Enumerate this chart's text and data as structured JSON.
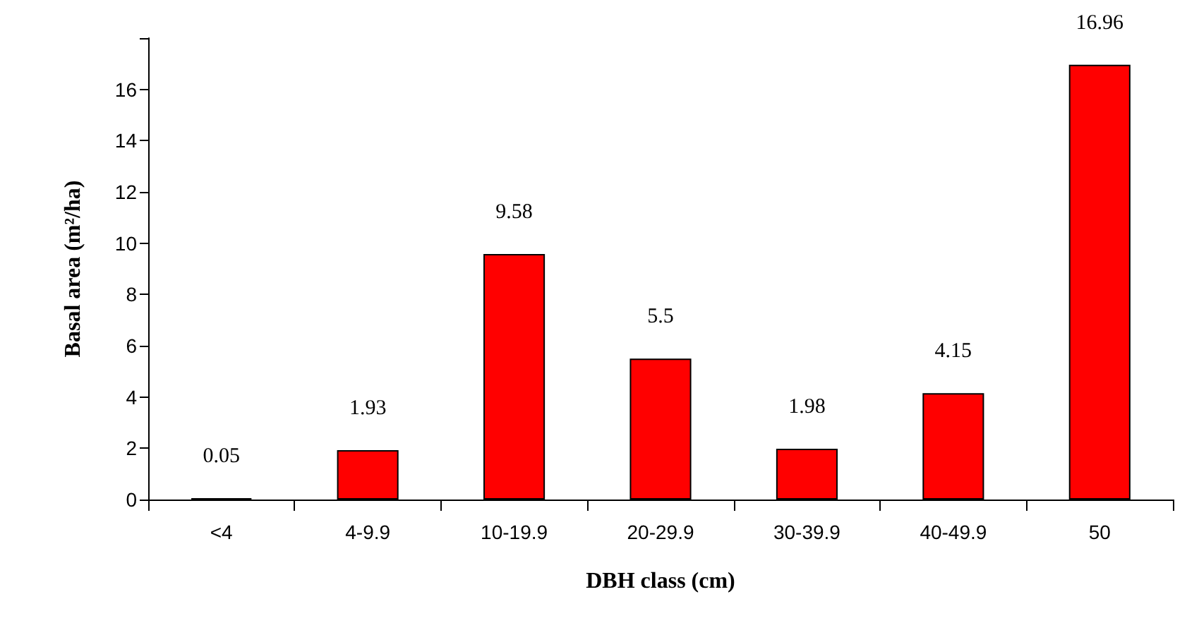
{
  "chart_data": {
    "type": "bar",
    "xlabel": "DBH class (cm)",
    "ylabel": "Basal area (m²/ha)",
    "categories": [
      "<4",
      "4-9.9",
      "10-19.9",
      "20-29.9",
      "30-39.9",
      "40-49.9",
      "50"
    ],
    "values": [
      0.05,
      1.93,
      9.58,
      5.5,
      1.98,
      4.15,
      16.96
    ],
    "color": "#ff0000",
    "ylim": [
      0,
      18
    ],
    "yticks": [
      0,
      2,
      4,
      6,
      8,
      10,
      12,
      14,
      16,
      {
        "value": 18,
        "label": null
      }
    ],
    "grid": false,
    "data_labels": true
  }
}
